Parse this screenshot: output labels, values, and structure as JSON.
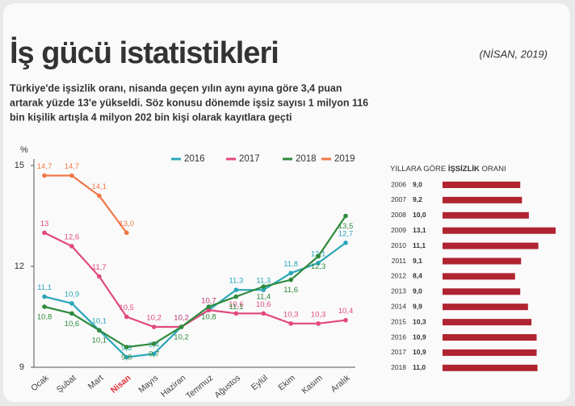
{
  "header": {
    "title": "İş gücü istatistikleri",
    "date": "(NİSAN, 2019)"
  },
  "intro": [
    "Türkiye'de işsizlik oranı, nisanda geçen yılın aynı ayına göre 3,4 puan",
    "artarak yüzde 13'e yükseldi. Söz konusu dönemde işsiz sayısı 1 milyon 116",
    "bin kişilik artışla 4 milyon 202 bin kişi olarak kayıtlara geçti"
  ],
  "chart_data": [
    {
      "type": "line",
      "ylabel": "%",
      "categories": [
        "Ocak",
        "Şubat",
        "Mart",
        "Nisan",
        "Mayıs",
        "Haziran",
        "Temmuz",
        "Ağustos",
        "Eylül",
        "Ekim",
        "Kasım",
        "Aralık"
      ],
      "highlight": {
        "category": 3,
        "color": "#e0303a"
      },
      "ylim": [
        9,
        15
      ],
      "yticks": [
        9,
        12,
        15
      ],
      "series": [
        {
          "name": "2016",
          "color": "#2aa6b8",
          "values": [
            11.1,
            10.9,
            10.1,
            9.3,
            9.4,
            10.2,
            10.7,
            11.3,
            11.3,
            11.8,
            12.1,
            12.7
          ],
          "value_labels": [
            "11,1",
            "10,9",
            "10,1",
            "9,3",
            "9,4",
            "10,2",
            "10,7",
            "11,3",
            "11,3",
            "11,8",
            "12,1",
            "12,7"
          ]
        },
        {
          "name": "2017",
          "color": "#e2487e",
          "values": [
            13,
            12.6,
            11.7,
            10.5,
            10.2,
            10.2,
            10.7,
            10.6,
            10.6,
            10.3,
            10.3,
            10.4
          ],
          "value_labels": [
            "13",
            "12,6",
            "11,7",
            "10,5",
            "10,2",
            "10,2",
            "10,7",
            "10,6",
            "10,6",
            "10,3",
            "10,3",
            "10,4"
          ]
        },
        {
          "name": "2018",
          "color": "#2e8a3c",
          "values": [
            10.8,
            10.6,
            10.1,
            9.6,
            9.7,
            10.2,
            10.8,
            11.1,
            11.4,
            11.6,
            12.3,
            13.5
          ],
          "value_labels": [
            "10,8",
            "10,6",
            "10,1",
            "9,6",
            "9,7",
            "10,2",
            "10,8",
            "11,1",
            "11,4",
            "11,6",
            "12,3",
            "13,5"
          ]
        },
        {
          "name": "2019",
          "color": "#f07848",
          "values": [
            14.7,
            14.7,
            14.1,
            13.0,
            null,
            null,
            null,
            null,
            null,
            null,
            null,
            null
          ],
          "value_labels": [
            "14,7",
            "14,7",
            "14,1",
            "13,0",
            null,
            null,
            null,
            null,
            null,
            null,
            null,
            null
          ]
        }
      ]
    },
    {
      "type": "hbar",
      "title": [
        "YILLARA GÖRE ",
        "İŞSİZLİK",
        " ORANI"
      ],
      "categories": [
        "2006",
        "2007",
        "2008",
        "2009",
        "2010",
        "2011",
        "2012",
        "2013",
        "2014",
        "2015",
        "2016",
        "2017",
        "2018"
      ],
      "values": [
        9.0,
        9.2,
        10.0,
        13.1,
        11.1,
        9.1,
        8.4,
        9.0,
        9.9,
        10.3,
        10.9,
        10.9,
        11.0
      ],
      "value_labels": [
        "9,0",
        "9,2",
        "10,0",
        "13,1",
        "11,1",
        "9,1",
        "8,4",
        "9,0",
        "9,9",
        "10,3",
        "10,9",
        "10,9",
        "11,0"
      ],
      "color": "#b02330"
    }
  ]
}
